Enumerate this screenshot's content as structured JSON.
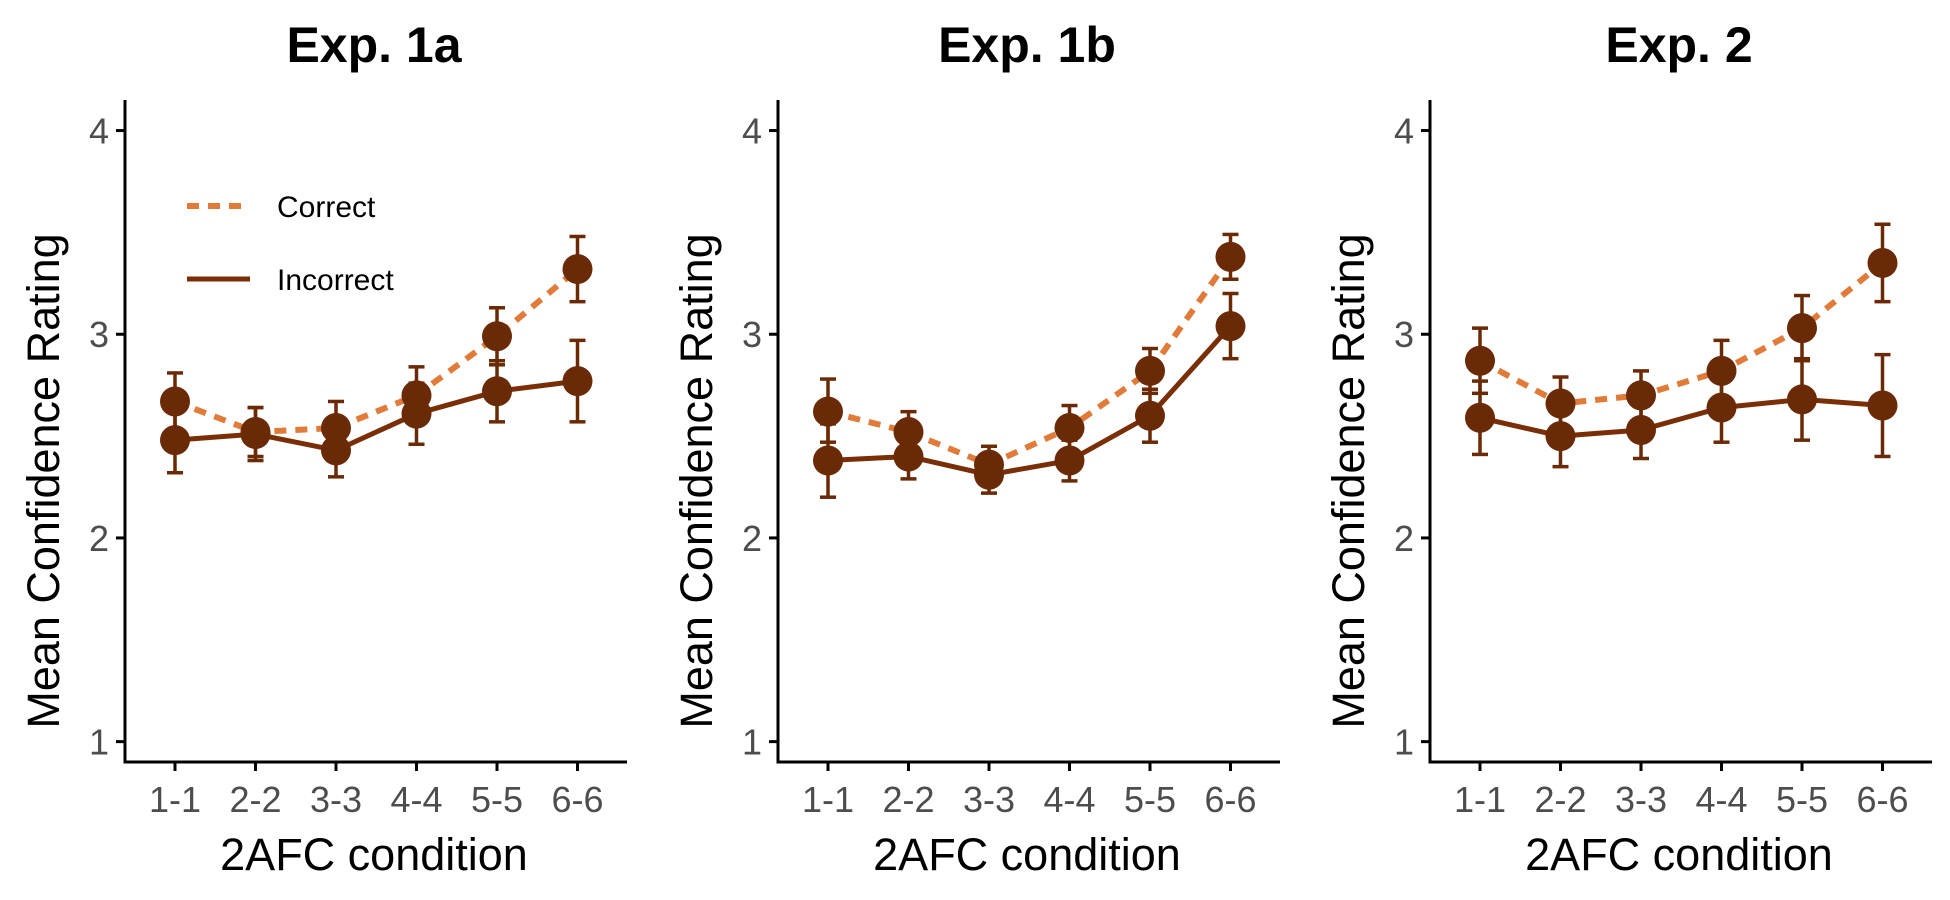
{
  "colors": {
    "correct": "#E07B39",
    "incorrect": "#7A2E05",
    "point": "#6B2A06",
    "axis": "#000000",
    "tick_text": "#4d4d4d"
  },
  "legend": [
    {
      "label": "Correct",
      "style": "dashed"
    },
    {
      "label": "Incorrect",
      "style": "solid"
    }
  ],
  "chart_data": [
    {
      "type": "line",
      "title": "Exp. 1a",
      "xlabel": "2AFC condition",
      "ylabel": "Mean Confidence Rating",
      "categories": [
        "1-1",
        "2-2",
        "3-3",
        "4-4",
        "5-5",
        "6-6"
      ],
      "ylim": [
        0.9,
        4.15
      ],
      "yticks": [
        1,
        2,
        3,
        4
      ],
      "legend_position": "top-left",
      "series": [
        {
          "name": "Correct",
          "values": [
            2.67,
            2.52,
            2.54,
            2.7,
            2.99,
            3.32
          ],
          "err_low": [
            2.53,
            2.4,
            2.41,
            2.57,
            2.85,
            3.16
          ],
          "err_high": [
            2.81,
            2.64,
            2.67,
            2.84,
            3.13,
            3.48
          ]
        },
        {
          "name": "Incorrect",
          "values": [
            2.48,
            2.51,
            2.43,
            2.61,
            2.72,
            2.77
          ],
          "err_low": [
            2.32,
            2.38,
            2.3,
            2.46,
            2.57,
            2.57
          ],
          "err_high": [
            2.64,
            2.64,
            2.56,
            2.76,
            2.87,
            2.97
          ]
        }
      ]
    },
    {
      "type": "line",
      "title": "Exp. 1b",
      "xlabel": "2AFC condition",
      "ylabel": "Mean Confidence Rating",
      "categories": [
        "1-1",
        "2-2",
        "3-3",
        "4-4",
        "5-5",
        "6-6"
      ],
      "ylim": [
        0.9,
        4.15
      ],
      "yticks": [
        1,
        2,
        3,
        4
      ],
      "series": [
        {
          "name": "Correct",
          "values": [
            2.62,
            2.52,
            2.36,
            2.54,
            2.82,
            3.38
          ],
          "err_low": [
            2.47,
            2.42,
            2.27,
            2.43,
            2.71,
            3.27
          ],
          "err_high": [
            2.78,
            2.62,
            2.45,
            2.65,
            2.93,
            3.49
          ]
        },
        {
          "name": "Incorrect",
          "values": [
            2.38,
            2.4,
            2.31,
            2.38,
            2.6,
            3.04
          ],
          "err_low": [
            2.2,
            2.29,
            2.22,
            2.28,
            2.47,
            2.88
          ],
          "err_high": [
            2.56,
            2.51,
            2.4,
            2.48,
            2.73,
            3.2
          ]
        }
      ]
    },
    {
      "type": "line",
      "title": "Exp. 2",
      "xlabel": "2AFC condition",
      "ylabel": "Mean Confidence Rating",
      "categories": [
        "1-1",
        "2-2",
        "3-3",
        "4-4",
        "5-5",
        "6-6"
      ],
      "ylim": [
        0.9,
        4.15
      ],
      "yticks": [
        1,
        2,
        3,
        4
      ],
      "series": [
        {
          "name": "Correct",
          "values": [
            2.87,
            2.66,
            2.7,
            2.82,
            3.03,
            3.35
          ],
          "err_low": [
            2.71,
            2.53,
            2.58,
            2.67,
            2.87,
            3.16
          ],
          "err_high": [
            3.03,
            2.79,
            2.82,
            2.97,
            3.19,
            3.54
          ]
        },
        {
          "name": "Incorrect",
          "values": [
            2.59,
            2.5,
            2.53,
            2.64,
            2.68,
            2.65
          ],
          "err_low": [
            2.41,
            2.35,
            2.39,
            2.47,
            2.48,
            2.4
          ],
          "err_high": [
            2.77,
            2.65,
            2.67,
            2.81,
            2.88,
            2.9
          ]
        }
      ]
    }
  ]
}
